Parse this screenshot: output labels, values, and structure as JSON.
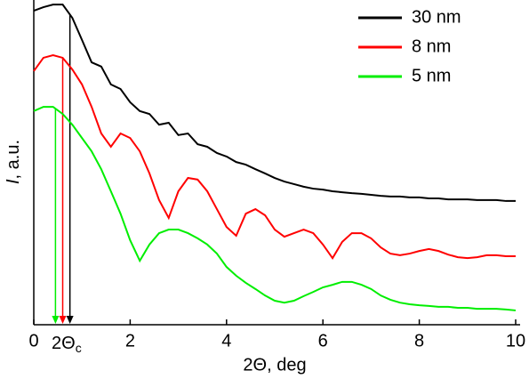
{
  "chart_data": {
    "type": "line",
    "xlabel": "2Θ, deg",
    "ylabel": {
      "symbol": "I",
      "unit": ", a.u."
    },
    "annotation": {
      "text": "2Θ",
      "subscript": "c"
    },
    "xlim": [
      0,
      10
    ],
    "xticks": [
      0,
      2,
      4,
      6,
      8,
      10
    ],
    "ylim": [
      0,
      10
    ],
    "legend": "upper right",
    "x": [
      0,
      0.2,
      0.4,
      0.6,
      0.8,
      1.0,
      1.2,
      1.4,
      1.6,
      1.8,
      2.0,
      2.2,
      2.4,
      2.6,
      2.8,
      3.0,
      3.2,
      3.4,
      3.6,
      3.8,
      4.0,
      4.2,
      4.4,
      4.6,
      4.8,
      5.0,
      5.2,
      5.4,
      5.6,
      5.8,
      6.0,
      6.2,
      6.4,
      6.6,
      6.8,
      7.0,
      7.2,
      7.4,
      7.6,
      7.8,
      8.0,
      8.2,
      8.4,
      8.6,
      8.8,
      9.0,
      9.2,
      9.4,
      9.6,
      9.8,
      10
    ],
    "series": [
      {
        "name": "30 nm",
        "color": "#000000",
        "critical_angle": 0.75,
        "values": [
          9.67,
          9.78,
          9.86,
          9.86,
          9.45,
          8.77,
          8.08,
          7.95,
          7.4,
          7.26,
          6.85,
          6.58,
          6.49,
          6.16,
          6.22,
          5.84,
          5.89,
          5.56,
          5.48,
          5.29,
          5.18,
          5.01,
          4.93,
          4.79,
          4.66,
          4.52,
          4.41,
          4.33,
          4.25,
          4.19,
          4.16,
          4.11,
          4.08,
          4.05,
          4.03,
          4.0,
          3.97,
          3.95,
          3.95,
          3.92,
          3.92,
          3.89,
          3.89,
          3.86,
          3.86,
          3.86,
          3.84,
          3.84,
          3.84,
          3.81,
          3.81
        ]
      },
      {
        "name": "8 nm",
        "color": "#ff0000",
        "critical_angle": 0.6,
        "values": [
          7.81,
          8.22,
          8.3,
          8.22,
          7.86,
          7.4,
          6.71,
          5.89,
          5.48,
          5.89,
          5.75,
          5.34,
          4.66,
          3.84,
          3.29,
          4.11,
          4.52,
          4.47,
          4.11,
          3.56,
          3.01,
          2.74,
          3.42,
          3.56,
          3.37,
          2.93,
          2.71,
          2.82,
          2.93,
          2.82,
          2.47,
          2.05,
          2.55,
          2.82,
          2.82,
          2.66,
          2.38,
          2.19,
          2.14,
          2.19,
          2.27,
          2.33,
          2.27,
          2.16,
          2.08,
          2.05,
          2.08,
          2.14,
          2.14,
          2.11,
          2.11
        ]
      },
      {
        "name": "5 nm",
        "color": "#00ee00",
        "critical_angle": 0.45,
        "values": [
          6.58,
          6.71,
          6.71,
          6.49,
          6.16,
          5.75,
          5.34,
          4.79,
          4.11,
          3.42,
          2.6,
          1.97,
          2.47,
          2.82,
          2.93,
          2.93,
          2.82,
          2.66,
          2.47,
          2.19,
          1.78,
          1.51,
          1.29,
          1.1,
          0.9,
          0.74,
          0.68,
          0.74,
          0.88,
          1.01,
          1.15,
          1.23,
          1.32,
          1.32,
          1.23,
          1.1,
          0.9,
          0.77,
          0.68,
          0.63,
          0.6,
          0.58,
          0.55,
          0.55,
          0.52,
          0.52,
          0.49,
          0.49,
          0.49,
          0.47,
          0.44
        ]
      }
    ]
  }
}
